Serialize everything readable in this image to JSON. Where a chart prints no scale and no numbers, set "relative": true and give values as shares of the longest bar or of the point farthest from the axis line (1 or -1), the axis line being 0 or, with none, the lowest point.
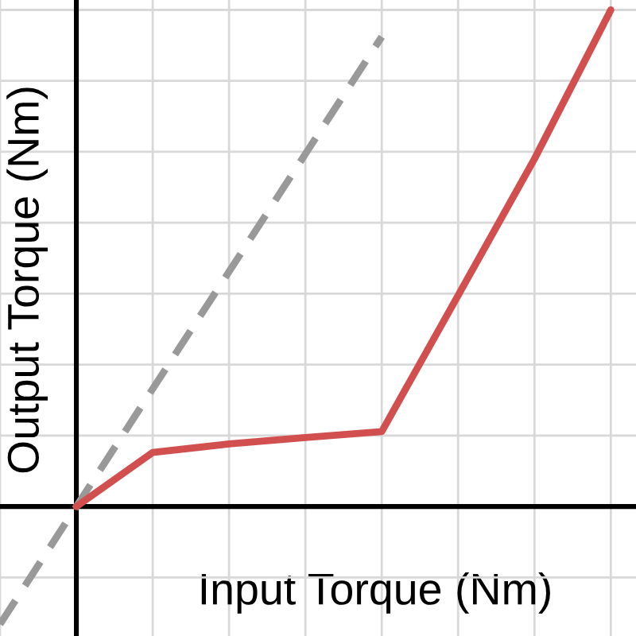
{
  "chart_data": {
    "type": "line",
    "relative": true,
    "xlabel": "Input Torque (Nm)",
    "ylabel": "Output Torque (Nm)",
    "categories": [
      null,
      null,
      null,
      null,
      null,
      null,
      null,
      null,
      null
    ],
    "grid": true,
    "series": [
      {
        "color": "#999999",
        "line_style": "dashed",
        "values": [
          -0.237,
          0,
          0.237,
          0.473,
          0.71,
          0.946,
          null,
          null,
          null
        ]
      },
      {
        "color": "#d1504f",
        "line_style": "solid",
        "values": [
          null,
          0,
          0.109,
          0.126,
          0.139,
          0.151,
          0.425,
          0.7,
          1
        ]
      }
    ]
  }
}
